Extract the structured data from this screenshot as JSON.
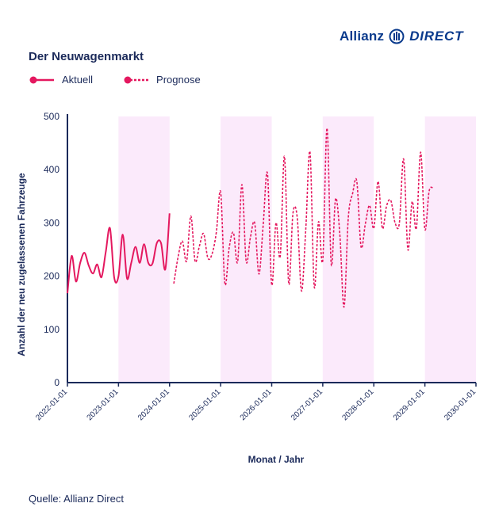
{
  "brand": {
    "name": "Allianz",
    "product": "DIRECT",
    "color": "#0a3a8c"
  },
  "legend": {
    "actual": "Aktuell",
    "forecast": "Prognose"
  },
  "source": "Quelle: Allianz Direct",
  "chart_data": {
    "type": "line",
    "title": "Der Neuwagenmarkt",
    "xlabel": "Monat / Jahr",
    "ylabel": "Anzahl der neu zugelassenen Fahrzeuge",
    "ylim": [
      0,
      500
    ],
    "yticks": [
      0,
      100,
      200,
      300,
      400,
      500
    ],
    "x_tick_labels": [
      "2022-01-01",
      "2023-01-01",
      "2024-01-01",
      "2025-01-01",
      "2026-01-01",
      "2027-01-01",
      "2028-01-01",
      "2029-01-01",
      "2030-01-01"
    ],
    "x_range": [
      "2022-01-01",
      "2030-01-01"
    ],
    "shaded_years": [
      2023,
      2025,
      2027,
      2029
    ],
    "grid": false,
    "legend_position": "top-left",
    "colors": {
      "line": "#e4185f",
      "shade": "#fbeafb",
      "axis": "#1b2a5a"
    },
    "series": [
      {
        "name": "Aktuell",
        "style": "solid",
        "start": "2022-01",
        "values": [
          168,
          238,
          190,
          225,
          244,
          220,
          205,
          222,
          198,
          245,
          290,
          197,
          200,
          278,
          196,
          225,
          255,
          225,
          260,
          225,
          224,
          262,
          262,
          213,
          318
        ]
      },
      {
        "name": "Prognose",
        "style": "dashed",
        "start": "2024-02",
        "values": [
          186,
          236,
          266,
          228,
          313,
          228,
          256,
          280,
          234,
          242,
          283,
          358,
          186,
          253,
          282,
          227,
          372,
          228,
          273,
          300,
          204,
          296,
          393,
          184,
          300,
          237,
          425,
          186,
          318,
          310,
          172,
          287,
          433,
          180,
          302,
          230,
          478,
          222,
          345,
          280,
          142,
          310,
          355,
          378,
          255,
          298,
          333,
          290,
          378,
          290,
          332,
          342,
          300,
          300,
          420,
          250,
          340,
          290,
          433,
          288,
          360,
          365
        ]
      }
    ]
  }
}
